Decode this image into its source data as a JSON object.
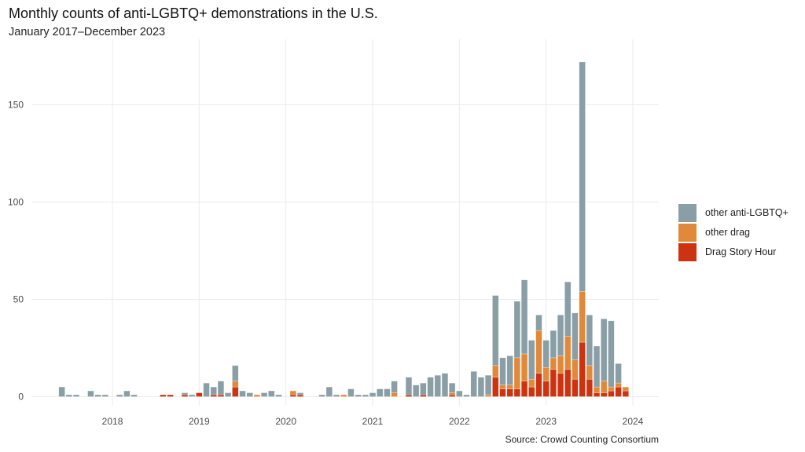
{
  "chart_data": {
    "type": "bar",
    "stacked": true,
    "title": "Monthly counts of anti-LGBTQ+ demonstrations in the U.S.",
    "subtitle": "January 2017–December 2023",
    "caption": "Source: Crowd Counting Consortium",
    "xlabel": "",
    "ylabel": "",
    "ylim": [
      0,
      175
    ],
    "y_ticks": [
      "0",
      "50",
      "100",
      "150"
    ],
    "x_ticks": [
      "2018",
      "2019",
      "2020",
      "2021",
      "2022",
      "2023",
      "2024"
    ],
    "grid": true,
    "legend_position": "right",
    "x_start": "2017-01",
    "series": [
      {
        "name": "Drag Story Hour",
        "color": "#cc3311",
        "values": [
          0,
          0,
          0,
          0,
          0,
          0,
          0,
          0,
          0,
          0,
          0,
          0,
          0,
          0,
          0,
          0,
          0,
          0,
          0,
          1,
          1,
          0,
          1,
          0,
          2,
          0,
          1,
          1,
          0,
          5,
          0,
          0,
          0,
          0,
          0,
          0,
          0,
          1,
          1,
          0,
          0,
          0,
          0,
          0,
          0,
          0,
          0,
          0,
          0,
          0,
          0,
          0,
          0,
          1,
          0,
          1,
          0,
          0,
          0,
          1,
          0,
          0,
          0,
          0,
          0,
          10,
          4,
          4,
          4,
          8,
          5,
          12,
          8,
          14,
          12,
          14,
          9,
          28,
          9,
          2,
          2,
          3,
          5,
          3
        ]
      },
      {
        "name": "other drag",
        "color": "#e0893b",
        "values": [
          0,
          0,
          0,
          0,
          0,
          0,
          0,
          0,
          0,
          0,
          0,
          0,
          0,
          0,
          0,
          0,
          0,
          0,
          0,
          0,
          0,
          0,
          0,
          0,
          0,
          0,
          0,
          0,
          0,
          3,
          0,
          0,
          1,
          0,
          0,
          0,
          0,
          2,
          0,
          0,
          0,
          0,
          0,
          0,
          1,
          0,
          0,
          0,
          0,
          0,
          0,
          2,
          0,
          0,
          0,
          0,
          0,
          0,
          0,
          1,
          0,
          0,
          0,
          0,
          1,
          6,
          2,
          2,
          16,
          14,
          4,
          22,
          7,
          6,
          9,
          17,
          10,
          26,
          7,
          3,
          6,
          2,
          2,
          2
        ]
      },
      {
        "name": "other anti-LGBTQ+",
        "color": "#8a9ea5",
        "values": [
          0,
          0,
          0,
          0,
          0,
          5,
          1,
          1,
          0,
          3,
          1,
          1,
          0,
          1,
          3,
          1,
          0,
          0,
          0,
          0,
          0,
          0,
          1,
          1,
          0,
          7,
          4,
          7,
          2,
          8,
          3,
          2,
          0,
          2,
          3,
          1,
          0,
          0,
          1,
          0,
          0,
          1,
          5,
          1,
          0,
          4,
          1,
          1,
          2,
          4,
          4,
          6,
          0,
          9,
          6,
          6,
          10,
          11,
          12,
          5,
          3,
          1,
          13,
          10,
          10,
          36,
          14,
          15,
          29,
          38,
          20,
          8,
          14,
          14,
          21,
          28,
          24,
          118,
          26,
          21,
          32,
          34,
          10,
          0
        ]
      }
    ],
    "legend": [
      "other anti-LGBTQ+",
      "other drag",
      "Drag Story Hour"
    ]
  }
}
